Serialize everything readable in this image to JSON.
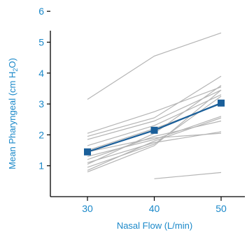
{
  "chart_data": {
    "type": "line",
    "title": "",
    "xlabel": "Nasal Flow (L/min)",
    "ylabel": {
      "prefix": "Mean Pharyngeal (cm H",
      "subscript": "2",
      "suffix": "O)"
    },
    "x": [
      30,
      40,
      50
    ],
    "xlim": [
      24,
      57
    ],
    "ylim": [
      0,
      6
    ],
    "xticks": [
      "30",
      "40",
      "50"
    ],
    "yticks": [
      "1",
      "2",
      "3",
      "4",
      "5",
      "6"
    ],
    "grid": false,
    "legend": "none",
    "colors": {
      "axis_text": "#1a88c9",
      "axis_line": "#000000",
      "individual_lines": "#b4b4b4",
      "mean_line": "#1a5f9a",
      "mean_marker": "#1a5f9a"
    },
    "mean_series": {
      "values": [
        1.45,
        2.15,
        3.03
      ],
      "marker": "square"
    },
    "individual_series": [
      [
        3.15,
        4.55,
        5.3
      ],
      [
        2.05,
        2.75,
        3.55
      ],
      [
        1.95,
        2.55,
        3.9
      ],
      [
        1.85,
        2.45,
        3.45
      ],
      [
        1.65,
        2.3,
        3.3
      ],
      [
        1.5,
        2.2,
        3.0
      ],
      [
        1.45,
        1.9,
        2.05
      ],
      [
        1.3,
        1.85,
        2.6
      ],
      [
        1.2,
        1.95,
        2.45
      ],
      [
        1.1,
        1.75,
        2.1
      ],
      [
        1.05,
        2.05,
        3.6
      ],
      [
        0.95,
        1.7,
        3.25
      ],
      [
        0.85,
        1.8,
        2.55
      ],
      [
        0.8,
        1.65,
        3.45
      ],
      [
        null,
        0.58,
        0.78
      ]
    ]
  }
}
